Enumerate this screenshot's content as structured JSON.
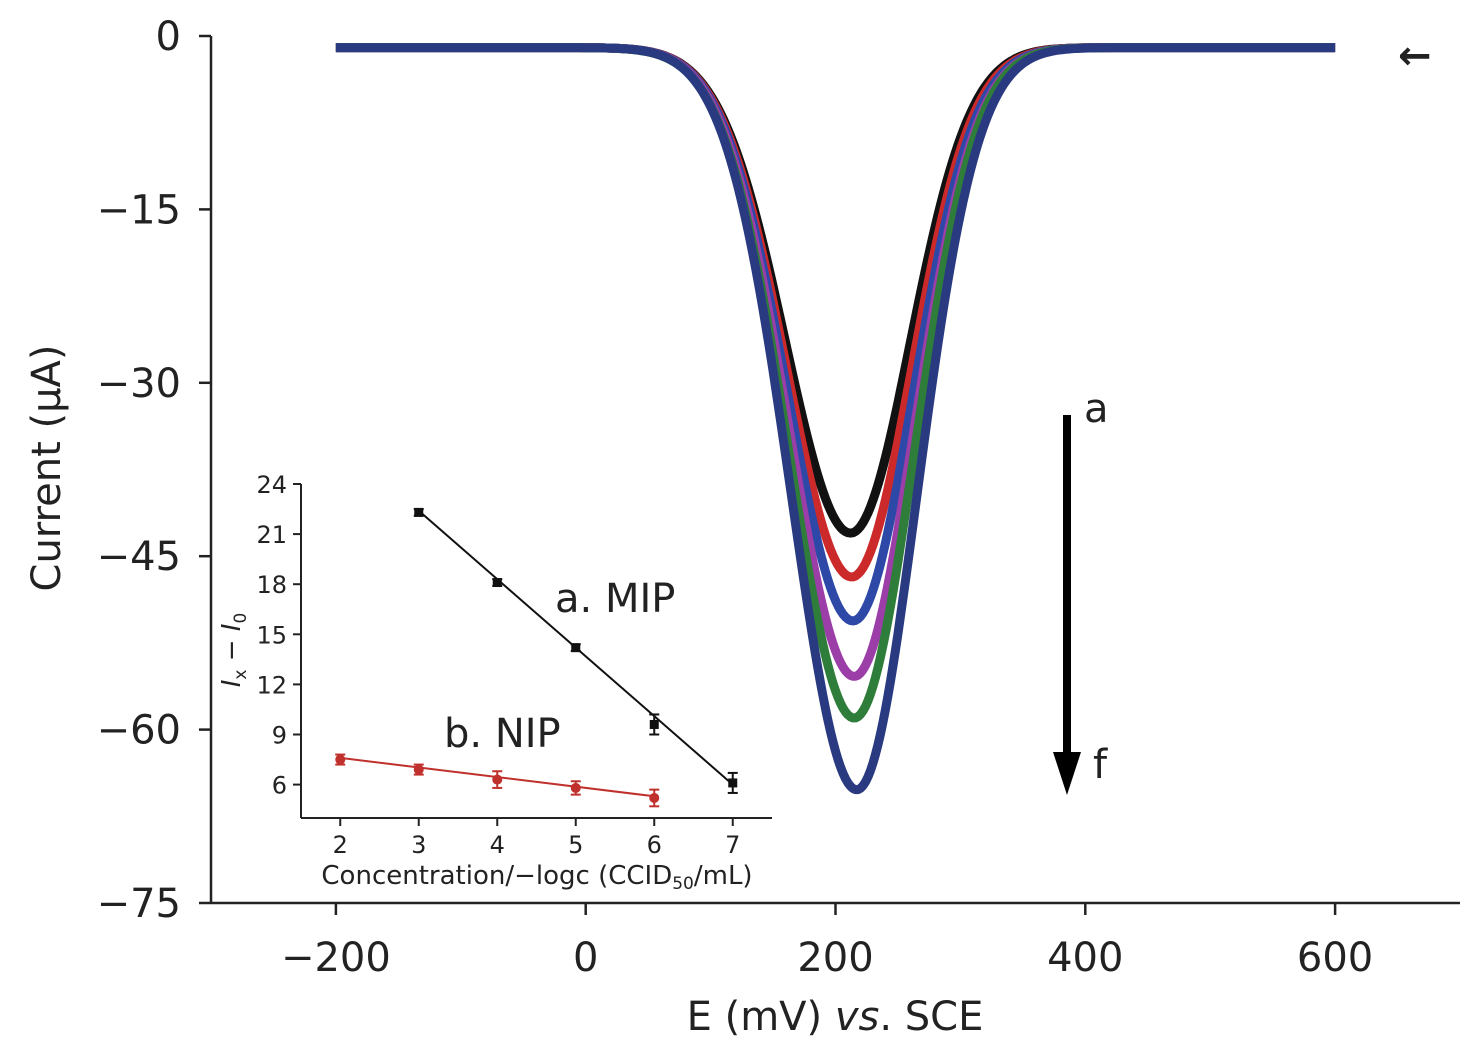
{
  "chart_data": [
    {
      "type": "line",
      "title": "",
      "xlabel_parts": [
        "E (mV) ",
        "vs",
        ". SCE"
      ],
      "ylabel": "Current (μA)",
      "xlim": [
        -300,
        700
      ],
      "ylim": [
        -75,
        0
      ],
      "xticks": [
        -200,
        0,
        200,
        400,
        600
      ],
      "xtick_labels": [
        "−200",
        "0",
        "200",
        "400",
        "600"
      ],
      "yticks": [
        0,
        -15,
        -30,
        -45,
        -60,
        -75
      ],
      "ytick_labels": [
        "0",
        "−15",
        "−30",
        "−45",
        "−60",
        "−75"
      ],
      "grid": false,
      "series": [
        {
          "color": "#111111",
          "peak_x": 212,
          "peak_y": -43.0
        },
        {
          "color": "#cc2a2a",
          "peak_x": 213,
          "peak_y": -46.8
        },
        {
          "color": "#2e48a8",
          "peak_x": 214,
          "peak_y": -50.6
        },
        {
          "color": "#9b3ea8",
          "peak_x": 215,
          "peak_y": -55.4
        },
        {
          "color": "#2f7d3a",
          "peak_x": 215,
          "peak_y": -59.0
        },
        {
          "color": "#2a3a80",
          "peak_x": 217,
          "peak_y": -65.2
        }
      ],
      "x_range": [
        -200,
        600
      ],
      "baseline": -1.0,
      "trend_arrow": {
        "from_label": "a",
        "to_label": "f"
      },
      "scan_direction_arrow": "←"
    },
    {
      "type": "line",
      "title": "",
      "xlabel": "Concentration/−logc (CCID",
      "xlabel_sub": "50",
      "xlabel_tail": "/mL)",
      "ylabel_parts": [
        "I",
        "x",
        " − ",
        "I",
        "0"
      ],
      "xlim": [
        1.5,
        7.5
      ],
      "ylim": [
        4,
        24
      ],
      "xticks": [
        2,
        3,
        4,
        5,
        6,
        7
      ],
      "xtick_labels": [
        "2",
        "3",
        "4",
        "5",
        "6",
        "7"
      ],
      "yticks": [
        6,
        9,
        12,
        15,
        18,
        21,
        24
      ],
      "ytick_labels": [
        "6",
        "9",
        "12",
        "15",
        "18",
        "21",
        "24"
      ],
      "grid": false,
      "series": [
        {
          "name": "a. MIP",
          "color": "#111111",
          "x": [
            3,
            4,
            5,
            6,
            7
          ],
          "y": [
            22.3,
            18.1,
            14.2,
            9.6,
            6.1
          ],
          "err": [
            0.2,
            0.2,
            0.2,
            0.6,
            0.6
          ],
          "fit": [
            [
              3,
              22.4
            ],
            [
              7,
              6.0
            ]
          ]
        },
        {
          "name": "b. NIP",
          "color": "#c0302c",
          "x": [
            2,
            3,
            4,
            5,
            6
          ],
          "y": [
            7.5,
            6.9,
            6.3,
            5.8,
            5.2
          ],
          "err": [
            0.3,
            0.3,
            0.5,
            0.4,
            0.5
          ],
          "fit": [
            [
              2,
              7.6
            ],
            [
              6,
              5.3
            ]
          ]
        }
      ]
    }
  ]
}
